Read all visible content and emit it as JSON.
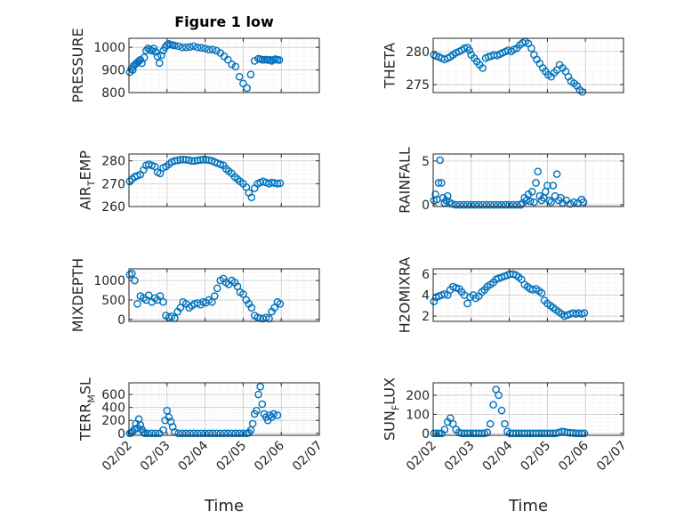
{
  "figure": {
    "title": "Figure 1 low",
    "xlabel": "Time"
  },
  "chart_data": [
    {
      "type": "scatter",
      "ylabel": "PRESSURE",
      "ylim": [
        800,
        1040
      ],
      "yticks": [
        800,
        900,
        1000
      ],
      "xlim": [
        0,
        5
      ],
      "xticks": [
        "02/02",
        "02/03",
        "02/04",
        "02/05",
        "02/06",
        "02/07"
      ],
      "grid": true,
      "x": [
        0.02,
        0.06,
        0.1,
        0.13,
        0.17,
        0.2,
        0.23,
        0.27,
        0.3,
        0.34,
        0.4,
        0.45,
        0.5,
        0.55,
        0.6,
        0.65,
        0.7,
        0.75,
        0.8,
        0.85,
        0.9,
        0.95,
        1.0,
        1.05,
        1.1,
        1.15,
        1.2,
        1.3,
        1.4,
        1.5,
        1.6,
        1.7,
        1.8,
        1.9,
        2.0,
        2.1,
        2.2,
        2.3,
        2.4,
        2.5,
        2.6,
        2.7,
        2.8,
        2.9,
        3.0,
        3.1,
        3.2,
        3.3,
        3.4,
        3.45,
        3.5,
        3.55,
        3.6,
        3.65,
        3.7,
        3.75,
        3.8,
        3.85,
        3.9,
        3.95
      ],
      "y": [
        890,
        905,
        900,
        920,
        925,
        930,
        935,
        940,
        945,
        930,
        955,
        985,
        995,
        990,
        985,
        995,
        980,
        960,
        930,
        965,
        985,
        1000,
        1010,
        1015,
        1012,
        1010,
        1008,
        1005,
        1000,
        1000,
        1002,
        1005,
        1000,
        998,
        995,
        990,
        990,
        985,
        975,
        960,
        945,
        925,
        915,
        870,
        840,
        820,
        880,
        940,
        950,
        948,
        945,
        945,
        946,
        944,
        945,
        940,
        945,
        948,
        945,
        944
      ]
    },
    {
      "type": "scatter",
      "ylabel": "THETA",
      "ylim": [
        273.8,
        282
      ],
      "yticks": [
        275,
        280
      ],
      "xlim": [
        0,
        5
      ],
      "xticks": [
        "02/02",
        "02/03",
        "02/04",
        "02/05",
        "02/06",
        "02/07"
      ],
      "grid": true,
      "x": [
        0.02,
        0.08,
        0.15,
        0.22,
        0.3,
        0.38,
        0.45,
        0.52,
        0.6,
        0.68,
        0.75,
        0.82,
        0.9,
        0.95,
        1.0,
        1.08,
        1.15,
        1.22,
        1.3,
        1.38,
        1.45,
        1.52,
        1.6,
        1.68,
        1.75,
        1.82,
        1.9,
        1.97,
        2.05,
        2.12,
        2.2,
        2.28,
        2.35,
        2.42,
        2.5,
        2.58,
        2.65,
        2.72,
        2.8,
        2.88,
        2.95,
        3.02,
        3.1,
        3.18,
        3.25,
        3.32,
        3.4,
        3.48,
        3.55,
        3.62,
        3.7,
        3.78,
        3.85,
        3.92
      ],
      "y": [
        279.5,
        279.3,
        279.2,
        279.0,
        278.8,
        279.0,
        279.2,
        279.5,
        279.8,
        280.0,
        280.2,
        280.5,
        280.6,
        280.2,
        279.5,
        279.0,
        278.5,
        278.0,
        277.5,
        279.0,
        279.2,
        279.3,
        279.5,
        279.4,
        279.6,
        279.8,
        280.0,
        280.2,
        280.0,
        280.3,
        280.5,
        281.0,
        281.3,
        281.5,
        281.2,
        280.5,
        279.5,
        278.8,
        278.2,
        277.5,
        277.0,
        276.5,
        276.2,
        276.8,
        277.2,
        278.0,
        277.5,
        277.0,
        276.2,
        275.5,
        275.2,
        274.8,
        274.2,
        273.9
      ]
    },
    {
      "type": "scatter",
      "ylabel": "AIR_TEMP",
      "ylim": [
        260,
        283
      ],
      "yticks": [
        260,
        270,
        280
      ],
      "xlim": [
        0,
        5
      ],
      "xticks": [
        "02/02",
        "02/03",
        "02/04",
        "02/05",
        "02/06",
        "02/07"
      ],
      "grid": true,
      "x": [
        0.02,
        0.08,
        0.15,
        0.22,
        0.3,
        0.38,
        0.45,
        0.52,
        0.6,
        0.68,
        0.75,
        0.82,
        0.9,
        0.97,
        1.05,
        1.12,
        1.2,
        1.28,
        1.35,
        1.42,
        1.5,
        1.58,
        1.65,
        1.72,
        1.8,
        1.88,
        1.95,
        2.02,
        2.1,
        2.18,
        2.25,
        2.32,
        2.4,
        2.48,
        2.55,
        2.62,
        2.7,
        2.78,
        2.85,
        2.92,
        3.0,
        3.08,
        3.15,
        3.22,
        3.3,
        3.38,
        3.45,
        3.52,
        3.6,
        3.68,
        3.75,
        3.82,
        3.9,
        3.97
      ],
      "y": [
        271,
        272,
        273,
        273.5,
        274,
        276,
        278,
        278.5,
        278,
        277.5,
        275,
        274.5,
        277,
        277.5,
        278.5,
        279.5,
        280,
        280.2,
        280.5,
        280.6,
        280.5,
        280.3,
        280.0,
        280.0,
        280.2,
        280.4,
        280.6,
        280.5,
        280.3,
        280.0,
        279.5,
        279.0,
        278.5,
        278.0,
        276.5,
        275.5,
        274.5,
        273.0,
        272.0,
        271.0,
        270.0,
        268.5,
        266.0,
        264.0,
        268.0,
        270.0,
        270.5,
        271.0,
        270.5,
        270.0,
        270.5,
        270.3,
        270.0,
        270.2
      ]
    },
    {
      "type": "scatter",
      "ylabel": "RAINFALL",
      "ylim": [
        -0.2,
        5.8
      ],
      "yticks": [
        0,
        5
      ],
      "xlim": [
        0,
        5
      ],
      "xticks": [
        "02/02",
        "02/03",
        "02/04",
        "02/05",
        "02/06",
        "02/07"
      ],
      "grid": true,
      "x": [
        0.02,
        0.06,
        0.1,
        0.14,
        0.18,
        0.22,
        0.26,
        0.3,
        0.34,
        0.38,
        0.42,
        0.5,
        0.6,
        0.7,
        0.8,
        0.9,
        1.0,
        1.1,
        1.2,
        1.3,
        1.4,
        1.5,
        1.6,
        1.7,
        1.8,
        1.9,
        2.0,
        2.1,
        2.2,
        2.3,
        2.35,
        2.4,
        2.45,
        2.5,
        2.55,
        2.6,
        2.65,
        2.7,
        2.75,
        2.8,
        2.85,
        2.9,
        2.95,
        3.0,
        3.05,
        3.1,
        3.15,
        3.2,
        3.25,
        3.3,
        3.35,
        3.4,
        3.5,
        3.6,
        3.7,
        3.8,
        3.9,
        3.95
      ],
      "y": [
        0.5,
        1.2,
        0.6,
        2.5,
        5.1,
        2.5,
        0.8,
        0.2,
        0.5,
        1.0,
        0.3,
        0.1,
        0,
        0,
        0,
        0,
        0,
        0,
        0,
        0,
        0,
        0,
        0,
        0,
        0,
        0,
        0,
        0,
        0,
        0,
        0.2,
        0.8,
        0.5,
        1.2,
        0.4,
        1.5,
        0.3,
        2.5,
        3.8,
        1.0,
        0.5,
        0.8,
        1.5,
        2.2,
        0.5,
        0.3,
        2.2,
        1.0,
        3.5,
        0.5,
        0.8,
        0.2,
        0.5,
        0.1,
        0.3,
        0.2,
        0.6,
        0.3
      ]
    },
    {
      "type": "scatter",
      "ylabel": "MIXDEPTH",
      "ylim": [
        -50,
        1300
      ],
      "yticks": [
        0,
        500,
        1000
      ],
      "xlim": [
        0,
        5
      ],
      "xticks": [
        "02/02",
        "02/03",
        "02/04",
        "02/05",
        "02/06",
        "02/07"
      ],
      "grid": true,
      "x": [
        0.02,
        0.08,
        0.15,
        0.22,
        0.3,
        0.38,
        0.45,
        0.52,
        0.6,
        0.68,
        0.75,
        0.82,
        0.9,
        0.97,
        1.05,
        1.12,
        1.2,
        1.28,
        1.35,
        1.42,
        1.5,
        1.58,
        1.65,
        1.72,
        1.8,
        1.88,
        1.95,
        2.02,
        2.1,
        2.18,
        2.25,
        2.32,
        2.4,
        2.48,
        2.55,
        2.62,
        2.7,
        2.78,
        2.85,
        2.92,
        3.0,
        3.08,
        3.15,
        3.22,
        3.3,
        3.38,
        3.45,
        3.52,
        3.6,
        3.68,
        3.75,
        3.82,
        3.9,
        3.97
      ],
      "y": [
        1150,
        1180,
        1000,
        400,
        600,
        550,
        500,
        620,
        450,
        550,
        500,
        600,
        450,
        100,
        50,
        80,
        30,
        200,
        300,
        450,
        400,
        300,
        350,
        400,
        420,
        380,
        450,
        430,
        500,
        450,
        600,
        800,
        1000,
        1050,
        950,
        900,
        1000,
        950,
        850,
        700,
        650,
        500,
        400,
        300,
        100,
        50,
        30,
        20,
        50,
        20,
        200,
        300,
        450,
        400
      ]
    },
    {
      "type": "scatter",
      "ylabel": "H2OMIXRA",
      "ylim": [
        1.5,
        6.5
      ],
      "yticks": [
        2,
        4,
        6
      ],
      "xlim": [
        0,
        5
      ],
      "xticks": [
        "02/02",
        "02/03",
        "02/04",
        "02/05",
        "02/06",
        "02/07"
      ],
      "grid": true,
      "x": [
        0.02,
        0.08,
        0.15,
        0.22,
        0.3,
        0.38,
        0.45,
        0.52,
        0.6,
        0.68,
        0.75,
        0.82,
        0.9,
        0.97,
        1.05,
        1.12,
        1.2,
        1.28,
        1.35,
        1.42,
        1.5,
        1.58,
        1.65,
        1.72,
        1.8,
        1.88,
        1.95,
        2.02,
        2.1,
        2.18,
        2.25,
        2.32,
        2.4,
        2.48,
        2.55,
        2.62,
        2.7,
        2.78,
        2.85,
        2.92,
        3.0,
        3.08,
        3.15,
        3.22,
        3.3,
        3.38,
        3.45,
        3.52,
        3.6,
        3.68,
        3.75,
        3.82,
        3.9,
        3.97
      ],
      "y": [
        3.4,
        3.8,
        3.9,
        4.0,
        4.1,
        4.0,
        4.5,
        4.8,
        4.7,
        4.6,
        4.3,
        4.0,
        3.2,
        3.8,
        4.0,
        3.7,
        3.9,
        4.3,
        4.5,
        4.8,
        5.0,
        5.2,
        5.5,
        5.6,
        5.7,
        5.8,
        5.9,
        6.0,
        6.0,
        5.9,
        5.7,
        5.5,
        5.0,
        4.8,
        4.6,
        4.5,
        4.6,
        4.4,
        4.2,
        3.5,
        3.2,
        3.0,
        2.8,
        2.6,
        2.4,
        2.2,
        2.0,
        2.1,
        2.2,
        2.3,
        2.2,
        2.3,
        2.2,
        2.3
      ]
    },
    {
      "type": "scatter",
      "ylabel": "TERR_MSL",
      "ylim": [
        -30,
        780
      ],
      "yticks": [
        0,
        200,
        400,
        600
      ],
      "xlim": [
        0,
        5
      ],
      "xticks": [
        "02/02",
        "02/03",
        "02/04",
        "02/05",
        "02/06",
        "02/07"
      ],
      "grid": true,
      "x": [
        0.02,
        0.06,
        0.1,
        0.14,
        0.18,
        0.22,
        0.26,
        0.3,
        0.34,
        0.38,
        0.42,
        0.5,
        0.6,
        0.7,
        0.8,
        0.9,
        0.95,
        1.0,
        1.05,
        1.1,
        1.15,
        1.2,
        1.3,
        1.4,
        1.5,
        1.6,
        1.7,
        1.8,
        1.9,
        2.0,
        2.1,
        2.2,
        2.3,
        2.4,
        2.5,
        2.6,
        2.7,
        2.8,
        2.9,
        3.0,
        3.1,
        3.15,
        3.2,
        3.25,
        3.3,
        3.35,
        3.4,
        3.45,
        3.5,
        3.55,
        3.6,
        3.65,
        3.7,
        3.75,
        3.8,
        3.9
      ],
      "y": [
        0,
        10,
        30,
        60,
        150,
        80,
        220,
        130,
        60,
        20,
        0,
        0,
        0,
        0,
        0,
        50,
        200,
        350,
        250,
        180,
        100,
        20,
        0,
        0,
        0,
        0,
        0,
        0,
        0,
        0,
        0,
        0,
        0,
        0,
        0,
        0,
        0,
        0,
        0,
        0,
        0,
        10,
        50,
        150,
        300,
        350,
        600,
        720,
        450,
        300,
        250,
        200,
        280,
        250,
        300,
        280
      ]
    },
    {
      "type": "scatter",
      "ylabel": "SUN_FLUX",
      "ylim": [
        -10,
        265
      ],
      "yticks": [
        0,
        100,
        200
      ],
      "xlim": [
        0,
        5
      ],
      "xticks": [
        "02/02",
        "02/03",
        "02/04",
        "02/05",
        "02/06",
        "02/07"
      ],
      "grid": true,
      "x": [
        0.02,
        0.08,
        0.15,
        0.22,
        0.3,
        0.38,
        0.45,
        0.52,
        0.6,
        0.68,
        0.75,
        0.82,
        0.9,
        0.97,
        1.05,
        1.12,
        1.2,
        1.28,
        1.35,
        1.42,
        1.5,
        1.58,
        1.65,
        1.72,
        1.8,
        1.88,
        1.95,
        2.02,
        2.1,
        2.18,
        2.25,
        2.32,
        2.4,
        2.48,
        2.55,
        2.62,
        2.7,
        2.78,
        2.85,
        2.92,
        3.0,
        3.08,
        3.15,
        3.22,
        3.3,
        3.38,
        3.45,
        3.52,
        3.6,
        3.68,
        3.75,
        3.82,
        3.9,
        3.97
      ],
      "y": [
        0,
        0,
        0,
        0,
        20,
        60,
        80,
        50,
        20,
        5,
        0,
        0,
        0,
        0,
        0,
        0,
        0,
        0,
        0,
        5,
        50,
        150,
        230,
        200,
        120,
        50,
        10,
        0,
        0,
        0,
        0,
        0,
        0,
        0,
        0,
        0,
        0,
        0,
        0,
        0,
        0,
        0,
        0,
        0,
        5,
        10,
        8,
        5,
        3,
        2,
        0,
        0,
        0,
        0
      ]
    }
  ],
  "style": {
    "marker_color": "#0072bd",
    "axis_color": "#262626",
    "grid_color": "#dcdcdc"
  }
}
